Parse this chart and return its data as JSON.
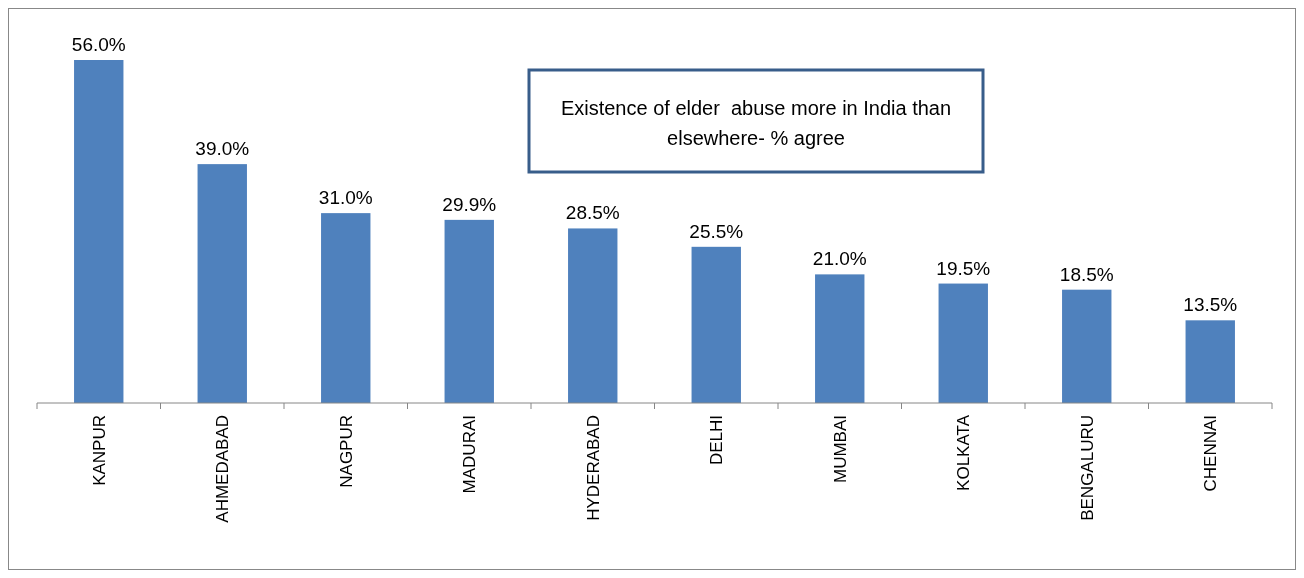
{
  "chart_data": {
    "type": "bar",
    "title": "Existence of elder  abuse more in India than elsewhere- % agree",
    "categories": [
      "KANPUR",
      "AHMEDABAD",
      "NAGPUR",
      "MADURAI",
      "HYDERABAD",
      "DELHI",
      "MUMBAI",
      "KOLKATA",
      "BENGALURU",
      "CHENNAI"
    ],
    "values": [
      56.0,
      39.0,
      31.0,
      29.9,
      28.5,
      25.5,
      21.0,
      19.5,
      18.5,
      13.5
    ],
    "value_labels": [
      "56.0%",
      "39.0%",
      "31.0%",
      "29.9%",
      "28.5%",
      "25.5%",
      "21.0%",
      "19.5%",
      "18.5%",
      "13.5%"
    ],
    "color": "#4f81bd"
  }
}
